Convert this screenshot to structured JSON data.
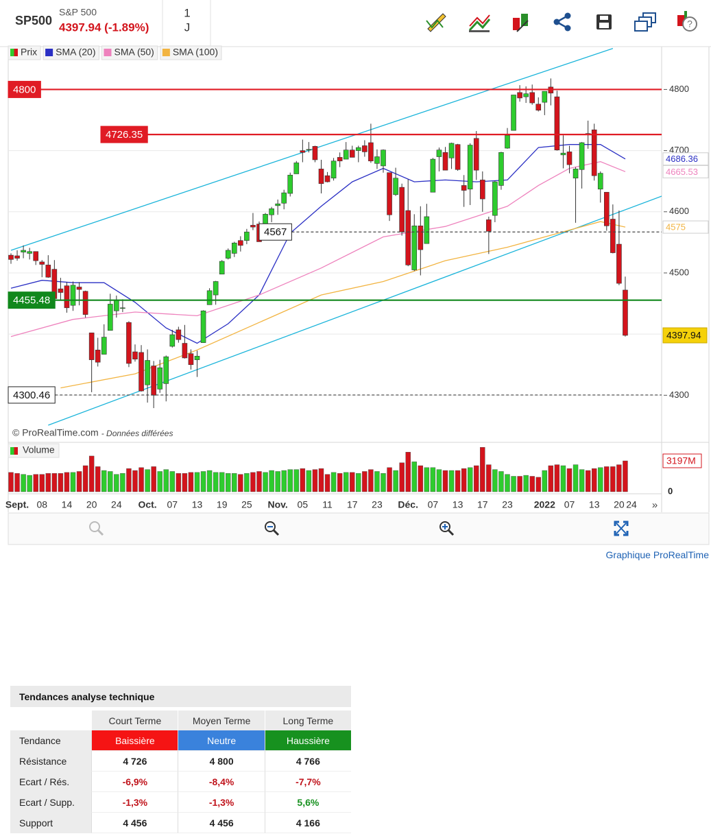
{
  "header": {
    "symbol": "SP500",
    "name": "S&P 500",
    "price": "4397.94 (-1.89%)",
    "period": "1",
    "period_unit": "J"
  },
  "chart_data": [
    {
      "type": "candlestick",
      "name": "Prix",
      "up_color": "#2ecc2e",
      "down_color": "#d3141c",
      "categories": [
        null,
        "Sept.",
        null,
        null,
        null,
        "08",
        null,
        null,
        null,
        "14",
        null,
        null,
        null,
        "20",
        null,
        null,
        null,
        "24",
        null,
        null,
        null,
        null,
        "Oct.",
        null,
        null,
        null,
        "07",
        null,
        null,
        null,
        "13",
        null,
        null,
        null,
        "19",
        null,
        null,
        null,
        "25",
        null,
        null,
        null,
        null,
        "Nov.",
        null,
        null,
        null,
        "05",
        null,
        null,
        null,
        "11",
        null,
        null,
        null,
        "17",
        null,
        null,
        null,
        "23",
        null,
        null,
        null,
        null,
        "Déc.",
        null,
        null,
        null,
        "07",
        null,
        null,
        null,
        "13",
        null,
        null,
        null,
        "17",
        null,
        null,
        null,
        "23",
        null,
        null,
        null,
        null,
        null,
        "2022",
        null,
        null,
        null,
        "07",
        null,
        null,
        null,
        "13",
        null,
        null,
        null,
        "20",
        null,
        "24"
      ],
      "open": [
        4529,
        4528,
        4534,
        4532,
        4535,
        4518,
        4513,
        4506,
        4474,
        4479,
        4447,
        4477,
        4470,
        4402,
        4374,
        4367,
        4406,
        4438,
        4442,
        4419,
        4371,
        4370,
        4317,
        4348,
        4310,
        4319,
        4380,
        4407,
        4385,
        4368,
        4358,
        4386,
        4448,
        4464,
        4498,
        4524,
        4532,
        4553,
        4553,
        4578,
        4580,
        4563,
        4595,
        4610,
        4614,
        4630,
        4662,
        4700,
        4701,
        4707,
        4670,
        4659,
        4655,
        4689,
        4686,
        4701,
        4700,
        4708,
        4713,
        4679,
        4675,
        4664,
        4628,
        4640,
        4602,
        4505,
        4577,
        4548,
        4632,
        4690,
        4697,
        4688,
        4710,
        4643,
        4637,
        4720,
        4652,
        4587,
        4594,
        4643,
        4704,
        4733,
        4795,
        4788,
        4795,
        4776,
        4779,
        4804,
        4788,
        4693,
        4698,
        4655,
        4669,
        4728,
        4734,
        4637,
        4632,
        4588,
        4547,
        4472,
        null
      ],
      "high": [
        4532,
        4537,
        4545,
        4541,
        4535,
        4521,
        4529,
        4521,
        4492,
        4485,
        4486,
        4485,
        4471,
        4402,
        4394,
        4416,
        4466,
        4463,
        4457,
        4421,
        4383,
        4382,
        4375,
        4356,
        4358,
        4365,
        4407,
        4412,
        4415,
        4375,
        4373,
        4439,
        4475,
        4487,
        4521,
        4540,
        4551,
        4560,
        4572,
        4598,
        4584,
        4598,
        4608,
        4620,
        4636,
        4664,
        4683,
        4718,
        4714,
        4708,
        4685,
        4665,
        4688,
        4697,
        4714,
        4708,
        4708,
        4717,
        4744,
        4702,
        4702,
        4664,
        4672,
        4646,
        4653,
        4596,
        4609,
        4613,
        4688,
        4705,
        4706,
        4713,
        4711,
        4660,
        4712,
        4732,
        4666,
        4592,
        4651,
        4698,
        4737,
        4791,
        4807,
        4805,
        4808,
        4787,
        4797,
        4818,
        4798,
        4725,
        4708,
        4673,
        4714,
        4749,
        4744,
        4666,
        4632,
        4612,
        4602,
        4494,
        null
      ],
      "low": [
        4515,
        4520,
        4524,
        4522,
        4513,
        4493,
        4492,
        4456,
        4456,
        4435,
        4438,
        4447,
        4427,
        4305,
        4347,
        4367,
        4406,
        4427,
        4436,
        4346,
        4355,
        4306,
        4288,
        4279,
        4304,
        4290,
        4378,
        4386,
        4360,
        4342,
        4330,
        4386,
        4448,
        4448,
        4498,
        4522,
        4526,
        4535,
        4547,
        4570,
        4551,
        4559,
        4583,
        4595,
        4604,
        4625,
        4662,
        4681,
        4697,
        4681,
        4630,
        4648,
        4651,
        4673,
        4686,
        4689,
        4681,
        4690,
        4680,
        4670,
        4664,
        4585,
        4626,
        4561,
        4511,
        4503,
        4496,
        4548,
        4632,
        4666,
        4668,
        4670,
        4667,
        4608,
        4611,
        4652,
        4600,
        4531,
        4583,
        4636,
        4703,
        4733,
        4780,
        4778,
        4775,
        4764,
        4758,
        4774,
        4700,
        4671,
        4663,
        4582,
        4638,
        4703,
        4651,
        4615,
        4569,
        4532,
        4480,
        4396,
        null
      ],
      "close": [
        4522,
        4524,
        4537,
        4535,
        4520,
        4514,
        4493,
        4458,
        4468,
        4443,
        4480,
        4473,
        4432,
        4358,
        4354,
        4395,
        4449,
        4455,
        4443,
        4352,
        4359,
        4307,
        4357,
        4300,
        4345,
        4363,
        4399,
        4391,
        4361,
        4350,
        4364,
        4438,
        4471,
        4486,
        4519,
        4537,
        4549,
        4545,
        4567,
        4575,
        4551,
        4596,
        4605,
        4613,
        4631,
        4660,
        4680,
        4697,
        4702,
        4685,
        4646,
        4649,
        4683,
        4683,
        4701,
        4689,
        4705,
        4698,
        4683,
        4690,
        4701,
        4595,
        4655,
        4567,
        4513,
        4577,
        4538,
        4592,
        4686,
        4701,
        4668,
        4712,
        4669,
        4635,
        4709,
        4668,
        4621,
        4568,
        4649,
        4697,
        4725,
        4791,
        4786,
        4793,
        4778,
        4766,
        4797,
        4794,
        4701,
        4696,
        4677,
        4670,
        4713,
        4726,
        4659,
        4663,
        4577,
        4533,
        4483,
        4397.94,
        null
      ],
      "ylim": [
        4223,
        4870
      ],
      "yticks": [
        4300,
        4400,
        4500,
        4600,
        4700,
        4800
      ],
      "grid": true,
      "series": [
        {
          "name": "SMA (20)",
          "color": "#2a2fc4",
          "x": [
            0,
            5,
            10,
            15,
            20,
            25,
            30,
            35,
            40,
            45,
            50,
            55,
            60,
            65,
            70,
            75,
            80,
            85,
            90,
            95,
            99
          ],
          "values": [
            4475,
            4488,
            4484,
            4484,
            4452,
            4410,
            4385,
            4417,
            4464,
            4565,
            4609,
            4649,
            4671,
            4649,
            4652,
            4649,
            4652,
            4705,
            4710,
            4710,
            4686.36
          ]
        },
        {
          "name": "SMA (50)",
          "color": "#ee82bd",
          "x": [
            0,
            10,
            20,
            30,
            40,
            50,
            60,
            70,
            80,
            85,
            90,
            95,
            99
          ],
          "values": [
            4396,
            4424,
            4436,
            4430,
            4464,
            4508,
            4559,
            4576,
            4609,
            4643,
            4671,
            4682,
            4665.53
          ]
        },
        {
          "name": "SMA (100)",
          "color": "#f2b441",
          "x": [
            8,
            20,
            30,
            40,
            50,
            60,
            70,
            80,
            90,
            95,
            99
          ],
          "values": [
            4312,
            4335,
            4374,
            4419,
            4464,
            4486,
            4520,
            4542,
            4570,
            4584,
            4575
          ]
        }
      ],
      "trendlines": [
        {
          "color": "#1ab4da",
          "x": [
            0,
            97
          ],
          "y": [
            4537,
            4867
          ]
        },
        {
          "color": "#1ab4da",
          "x": [
            6,
            105
          ],
          "y": [
            4251,
            4626
          ]
        }
      ],
      "levels": [
        {
          "value": 4800,
          "color": "#e01b24",
          "dashed": false,
          "label_fill": "#e01b24"
        },
        {
          "value": 4726.35,
          "color": "#e01b24",
          "dashed": false,
          "label_fill": "#e01b24"
        },
        {
          "value": 4567,
          "color": "#444444",
          "dashed": true,
          "label_fill": "#ffffff"
        },
        {
          "value": 4455.48,
          "color": "#11881c",
          "dashed": false,
          "label_fill": "#11881c"
        },
        {
          "value": 4300.46,
          "color": "#444444",
          "dashed": true,
          "label_fill": "#ffffff"
        }
      ],
      "price_label_color": "#f5d10a",
      "source": "© ProRealTime.com",
      "note": "- Données différées"
    },
    {
      "type": "bar",
      "name": "Volume",
      "ylim": [
        0,
        4760
      ],
      "yticks": [
        0,
        {
          "value": 3197,
          "label": "3197M"
        }
      ],
      "values": [
        2000,
        1900,
        1800,
        1700,
        1800,
        1800,
        1900,
        1900,
        1900,
        2000,
        2000,
        2100,
        2700,
        3700,
        2600,
        2200,
        2100,
        1800,
        1900,
        2400,
        2200,
        2500,
        2300,
        2600,
        2100,
        2300,
        2100,
        1900,
        1900,
        2000,
        2000,
        2100,
        2200,
        2000,
        2000,
        1900,
        1900,
        1800,
        1900,
        2000,
        2100,
        2000,
        2200,
        2100,
        2200,
        2300,
        2300,
        2400,
        2200,
        2300,
        2400,
        1800,
        2000,
        1900,
        2000,
        2000,
        1900,
        2100,
        2300,
        2100,
        1900,
        2500,
        2200,
        3000,
        4100,
        3100,
        2700,
        2500,
        2500,
        2300,
        2200,
        2200,
        2200,
        2400,
        2500,
        2700,
        4600,
        2800,
        2300,
        2100,
        1800,
        1600,
        1600,
        1700,
        1600,
        1500,
        2200,
        2700,
        2800,
        2700,
        2400,
        2800,
        2300,
        2200,
        2400,
        2500,
        2600,
        2600,
        2800,
        3197,
        null
      ]
    }
  ],
  "footer_link": "Graphique ProRealTime",
  "table": {
    "title": "Tendances analyse technique",
    "columns": [
      "Court Terme",
      "Moyen Terme",
      "Long Terme"
    ],
    "trend_colors": [
      "#f51414",
      "#3a82dc",
      "#17911f"
    ],
    "rows": [
      {
        "label": "Tendance",
        "cells": [
          "Baissière",
          "Neutre",
          "Haussière"
        ]
      },
      {
        "label": "Résistance",
        "cells": [
          "4 726",
          "4 800",
          "4 766"
        ]
      },
      {
        "label": "Ecart / Rés.",
        "cells": [
          "-6,9%",
          "-8,4%",
          "-7,7%"
        ]
      },
      {
        "label": "Ecart / Supp.",
        "cells": [
          "-1,3%",
          "-1,3%",
          "5,6%"
        ]
      },
      {
        "label": "Support",
        "cells": [
          "4 456",
          "4 456",
          "4 166"
        ]
      }
    ]
  }
}
